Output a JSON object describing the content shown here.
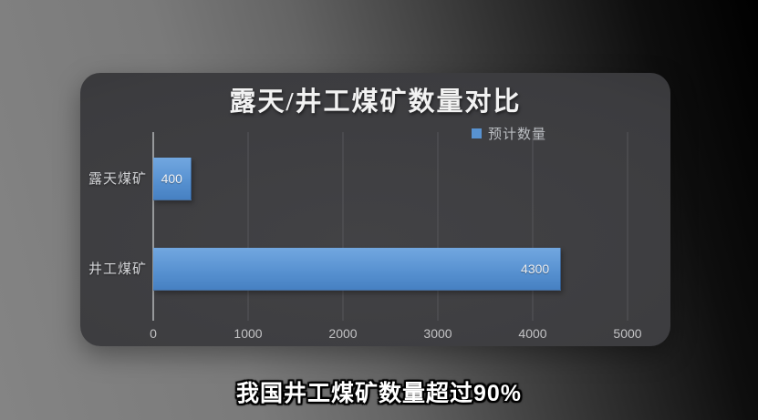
{
  "chart_data": {
    "type": "bar",
    "orientation": "horizontal",
    "title": "露天/井工煤矿数量对比",
    "legend": [
      "预计数量"
    ],
    "categories": [
      "露天煤矿",
      "井工煤矿"
    ],
    "values": [
      400,
      4300
    ],
    "xlabel": "",
    "ylabel": "",
    "xlim": [
      0,
      5000
    ],
    "x_ticks": [
      0,
      1000,
      2000,
      3000,
      4000,
      5000
    ],
    "grid": true,
    "legend_position": "top-right",
    "value_label_position": "inside-end"
  },
  "caption": "我国井工煤矿数量超过90%",
  "colors": {
    "bar_gradient_top": "#72a7e0",
    "bar_mid": "#5892d1",
    "bar_gradient_bottom": "#4680c2",
    "legend_swatch": "#4e94da",
    "panel": "#3c3c3f",
    "background_light": "#848484",
    "background_dark": "#000000",
    "gridline": "#56565a",
    "axis_line": "#97999b",
    "title_text": "#f2f2f2",
    "tick_text": "#c2c2c4"
  }
}
